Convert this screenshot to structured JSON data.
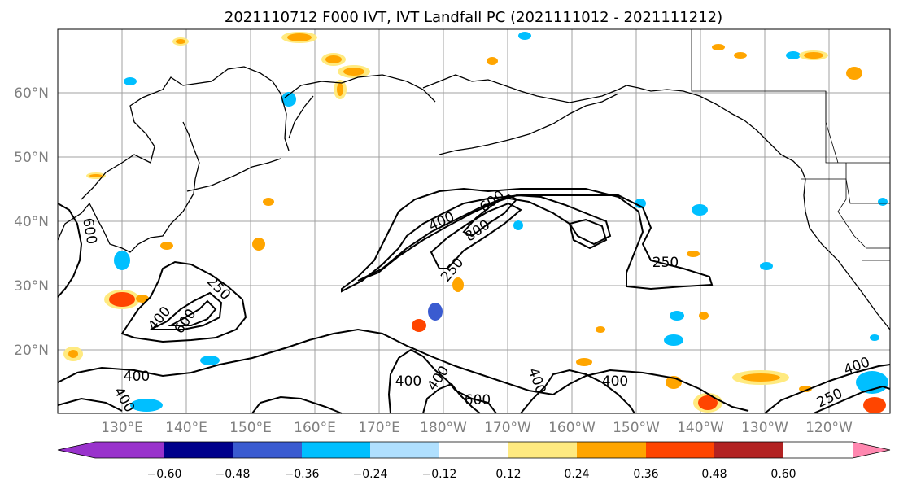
{
  "map": {
    "title": "2021110712 F000 IVT, IVT Landfall PC (2021111012 - 2021111212)",
    "lat_labels": [
      "60°N",
      "50°N",
      "40°N",
      "30°N",
      "20°N"
    ],
    "lon_labels": [
      "130°E",
      "140°E",
      "150°E",
      "160°E",
      "170°E",
      "180°W",
      "170°W",
      "160°W",
      "150°W",
      "140°W",
      "130°W",
      "120°W"
    ],
    "contour_labels": [
      "250",
      "400",
      "600",
      "800",
      "400",
      "600",
      "250",
      "250",
      "400",
      "600",
      "400",
      "400",
      "600",
      "400",
      "400",
      "250",
      "400",
      "400"
    ]
  },
  "colorbar": {
    "colors": [
      "#9932cc",
      "#00008b",
      "#3a5bd0",
      "#00bfff",
      "#b0e0ff",
      "#ffffff",
      "#ffea80",
      "#ffa500",
      "#ff4500",
      "#b22222",
      "#ff88b0"
    ],
    "tick_labels": [
      "−0.60",
      "−0.48",
      "−0.36",
      "−0.24",
      "−0.12",
      "0.12",
      "0.24",
      "0.36",
      "0.48",
      "0.60"
    ]
  }
}
